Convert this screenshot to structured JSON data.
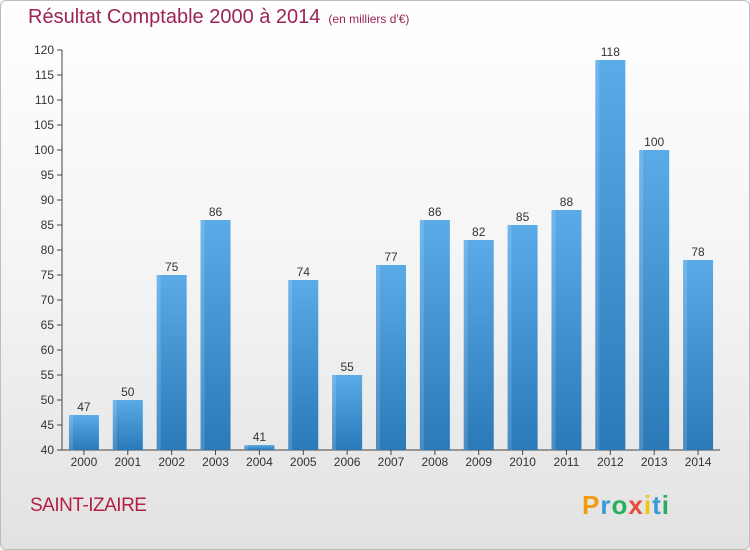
{
  "title": "Résultat Comptable 2000 à 2014",
  "subtitle": "(en milliers d'€)",
  "commune": "SAINT-IZAIRE",
  "brand": {
    "name": "Proxiti",
    "letters": [
      {
        "ch": "P",
        "color": "#f39c12"
      },
      {
        "ch": "r",
        "color": "#3a9ad9"
      },
      {
        "ch": "o",
        "color": "#27ae60"
      },
      {
        "ch": "x",
        "color": "#e74c3c"
      },
      {
        "ch": "i",
        "color": "#f1c40f"
      },
      {
        "ch": "t",
        "color": "#3a9ad9"
      },
      {
        "ch": "i",
        "color": "#27ae60"
      }
    ]
  },
  "colors": {
    "bar_light": "#5aabe8",
    "bar_dark": "#2a79b8",
    "axis": "#444444",
    "grid": "#cccccc"
  },
  "chart_data": {
    "type": "bar",
    "title": "Résultat Comptable 2000 à 2014",
    "subtitle": "(en milliers d'€)",
    "xlabel": "",
    "ylabel": "",
    "categories": [
      "2000",
      "2001",
      "2002",
      "2003",
      "2004",
      "2005",
      "2006",
      "2007",
      "2008",
      "2009",
      "2010",
      "2011",
      "2012",
      "2013",
      "2014"
    ],
    "values": [
      47,
      50,
      75,
      86,
      41,
      74,
      55,
      77,
      86,
      82,
      85,
      88,
      118,
      100,
      78
    ],
    "ylim": [
      40,
      120
    ],
    "yticks": [
      40,
      45,
      50,
      55,
      60,
      65,
      70,
      75,
      80,
      85,
      90,
      95,
      100,
      105,
      110,
      115,
      120
    ],
    "grid": false,
    "data_labels": true
  }
}
